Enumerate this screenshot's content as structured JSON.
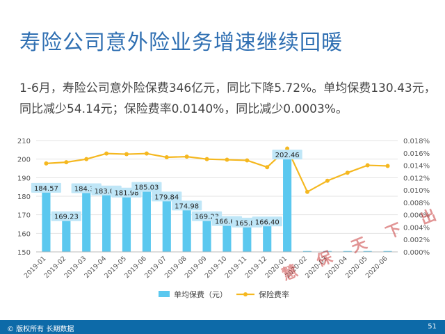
{
  "title": "寿险公司意外险业务增速继续回暖",
  "summary": {
    "line1": "1-6月，寿险公司意外险保费346亿元，同比下降5.72%。单均保费130.43元，",
    "line2": "同比减少54.14元；保险费率0.0140%，同比减少0.0003%。"
  },
  "footer": {
    "copyright": "© 版权所有 长期数据",
    "page": "51"
  },
  "watermark": "慧 保 天 下 出 品",
  "colors": {
    "bar": "#5bc8ef",
    "line": "#f5b820",
    "title": "#2f6fb2",
    "footer": "#0d6aa8",
    "label_bg": "#bfe6f7"
  },
  "chart_data": {
    "type": "bar",
    "categories": [
      "2019-01",
      "2019-02",
      "2019-03",
      "2019-04",
      "2019-05",
      "2019-06",
      "2019-07",
      "2019-08",
      "2019-09",
      "2019-10",
      "2019-11",
      "2019-12",
      "2020-01",
      "2020-02",
      "2020-03",
      "2020-04",
      "2020-05",
      "2020-06"
    ],
    "series": [
      {
        "name": "单均保费（元）",
        "type": "bar",
        "axis": "left",
        "values": [
          184.57,
          169.23,
          184.3,
          183.09,
          181.98,
          185.03,
          179.84,
          174.98,
          169.23,
          166.63,
          165.82,
          166.4,
          202.46,
          null,
          null,
          null,
          null,
          null
        ],
        "labels": [
          "184.57",
          "169.23",
          "184.30",
          "183.09",
          "181.98",
          "185.03",
          "179.84",
          "174.98",
          "169.23",
          "166.63",
          "165.82",
          "166.40",
          "202.46",
          "",
          "",
          "",
          "",
          ""
        ]
      },
      {
        "name": "保险费率",
        "type": "line",
        "axis": "right",
        "values": [
          0.0143,
          0.0145,
          0.015,
          0.0159,
          0.0158,
          0.0159,
          0.0153,
          0.0154,
          0.015,
          0.0149,
          0.0148,
          0.0137,
          0.0167,
          0.0097,
          0.0115,
          0.0128,
          0.014,
          0.0139
        ]
      }
    ],
    "y_left": {
      "min": 150,
      "max": 210,
      "ticks": [
        "150",
        "160",
        "170",
        "180",
        "190",
        "200",
        "210"
      ]
    },
    "y_right": {
      "min": 0,
      "max": 0.018,
      "ticks": [
        "0.000%",
        "0.002%",
        "0.004%",
        "0.006%",
        "0.008%",
        "0.010%",
        "0.012%",
        "0.014%",
        "0.016%",
        "0.018%"
      ]
    },
    "grid": true,
    "legend": "bottom"
  }
}
